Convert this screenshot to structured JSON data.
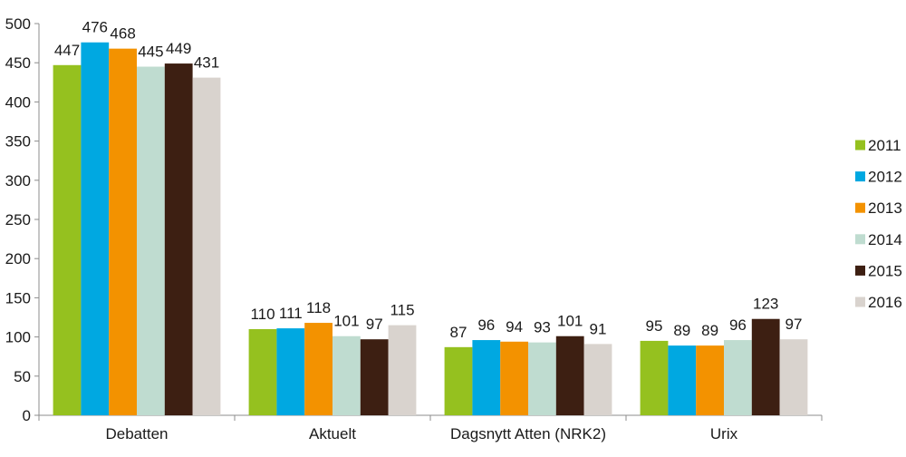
{
  "chart_data": {
    "type": "bar",
    "title": "",
    "xlabel": "",
    "ylabel": "",
    "ylim": [
      0,
      500
    ],
    "yticks": [
      0,
      50,
      100,
      150,
      200,
      250,
      300,
      350,
      400,
      450,
      500
    ],
    "grid": false,
    "legend_position": "right",
    "categories": [
      "Debatten",
      "Aktuelt",
      "Dagsnytt Atten (NRK2)",
      "Urix"
    ],
    "series": [
      {
        "name": "2011",
        "color": "#95c11f",
        "values": [
          447,
          110,
          87,
          95
        ]
      },
      {
        "name": "2012",
        "color": "#00a8e1",
        "values": [
          476,
          111,
          96,
          89
        ]
      },
      {
        "name": "2013",
        "color": "#f39200",
        "values": [
          468,
          118,
          94,
          89
        ]
      },
      {
        "name": "2014",
        "color": "#bfdcd0",
        "values": [
          445,
          101,
          93,
          96
        ]
      },
      {
        "name": "2015",
        "color": "#3d1f12",
        "values": [
          449,
          97,
          101,
          123
        ]
      },
      {
        "name": "2016",
        "color": "#d9d3ce",
        "values": [
          431,
          115,
          91,
          97
        ]
      }
    ]
  }
}
